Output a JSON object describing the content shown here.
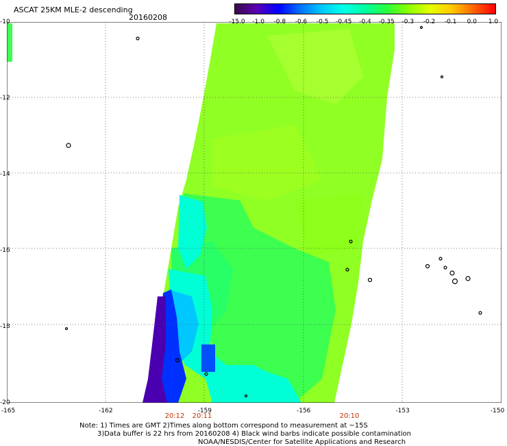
{
  "header": {
    "title": "ASCAT 25KM MLE-2 descending",
    "date": "20160208"
  },
  "colorbar": {
    "ticks": [
      "-15.0",
      "-1.0",
      "-0.8",
      "-0.6",
      "-0.5",
      "-0.45",
      "-0.4",
      "-0.35",
      "-0.3",
      "-0.2",
      "-0.1",
      "0.0",
      "1.0"
    ],
    "colors": [
      "#3b0a4a",
      "#5a00b4",
      "#0000ff",
      "#0070ff",
      "#00c8ff",
      "#00ffe6",
      "#00ffa0",
      "#28ff3c",
      "#8cff00",
      "#e6ff00",
      "#ffc800",
      "#ff6400",
      "#ff0000"
    ]
  },
  "map": {
    "lat_labels": [
      "-10",
      "-12",
      "-14",
      "-16",
      "-18",
      "-20"
    ],
    "lon_labels": [
      "-165",
      "-162",
      "-159",
      "-156",
      "-153",
      "-150"
    ],
    "time_labels": [
      "20:12",
      "20:11",
      "20:10"
    ],
    "swath_colors": {
      "green_main": "#9cff2a",
      "green_alt": "#7cff18",
      "green_mid": "#3cff50",
      "cyan": "#00ffd6",
      "sky": "#00c8ff",
      "blue": "#0040ff",
      "purple": "#4a00b0"
    }
  },
  "notes": {
    "line1": "Note: 1) Times are GMT 2)Times along bottom correspond to measurement at ~15S",
    "line2": "3)Data buffer is 22 hrs from 20160208 4) Black wind barbs indicate possible contamination",
    "line3": "NOAA/NESDIS/Center for Satellite Applications and Research"
  }
}
